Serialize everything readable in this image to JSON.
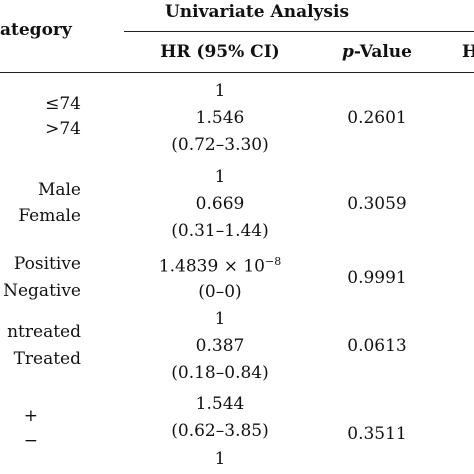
{
  "table": {
    "header": {
      "category": "ategory",
      "group": "Univariate Analysis",
      "hr": "HR (95% CI)",
      "pvalue_prefix": "p",
      "pvalue_suffix": "-Value",
      "cut_col": "H"
    },
    "rows": [
      {
        "categories": [
          "≤74",
          ">74"
        ],
        "hr": [
          "1",
          "1.546",
          "(0.72–3.30)"
        ],
        "p": "0.2601"
      },
      {
        "categories": [
          "Male",
          "Female"
        ],
        "hr": [
          "1",
          "0.669",
          "(0.31–1.44)"
        ],
        "p": "0.3059"
      },
      {
        "categories": [
          "Positive",
          "Negative"
        ],
        "hr": [
          "1.4839 × 10",
          "(0–0)"
        ],
        "hr_exp": "−8",
        "p": "0.9991"
      },
      {
        "categories": [
          "ntreated",
          "Treated"
        ],
        "hr": [
          "1",
          "0.387",
          "(0.18–0.84)"
        ],
        "p": "0.0613"
      },
      {
        "categories": [
          "+",
          "−"
        ],
        "hr": [
          "1.544",
          "(0.62–3.85)",
          "1"
        ],
        "p": "0.3511"
      }
    ]
  }
}
